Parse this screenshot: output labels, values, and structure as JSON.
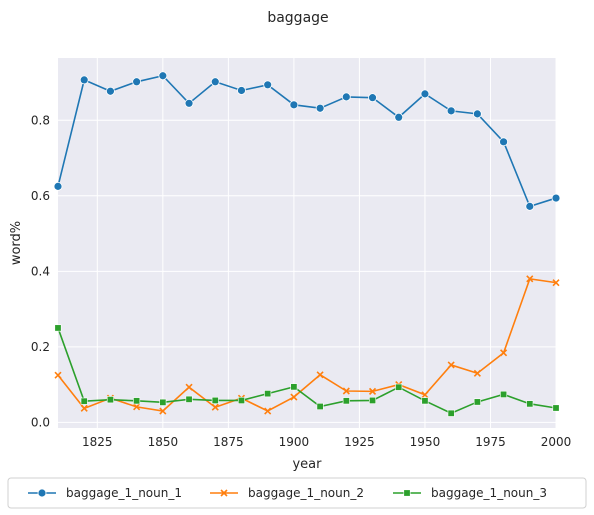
{
  "chart_data": {
    "type": "line",
    "title": "baggage",
    "xlabel": "year",
    "ylabel": "word%",
    "xlim": [
      1810,
      2000
    ],
    "ylim": [
      -0.015,
      0.965
    ],
    "xticks": [
      1825,
      1850,
      1875,
      1900,
      1925,
      1950,
      1975,
      2000
    ],
    "yticks": [
      0.0,
      0.2,
      0.4,
      0.6,
      0.8
    ],
    "grid": true,
    "background": "#eaeaf2",
    "legend_position": "bottom-center",
    "x": [
      1810,
      1820,
      1830,
      1840,
      1850,
      1860,
      1870,
      1880,
      1890,
      1900,
      1910,
      1920,
      1930,
      1940,
      1950,
      1960,
      1970,
      1980,
      1990,
      2000
    ],
    "series": [
      {
        "name": "baggage_1_noun_1",
        "color": "#1f77b4",
        "marker": "circle",
        "values": [
          0.625,
          0.907,
          0.877,
          0.902,
          0.918,
          0.845,
          0.902,
          0.879,
          0.894,
          0.841,
          0.832,
          0.862,
          0.86,
          0.808,
          0.87,
          0.825,
          0.817,
          0.743,
          0.572,
          0.594
        ]
      },
      {
        "name": "baggage_1_noun_2",
        "color": "#ff7f0e",
        "marker": "x",
        "values": [
          0.125,
          0.037,
          0.064,
          0.041,
          0.03,
          0.093,
          0.04,
          0.064,
          0.03,
          0.067,
          0.126,
          0.083,
          0.082,
          0.1,
          0.073,
          0.152,
          0.13,
          0.184,
          0.38,
          0.37
        ]
      },
      {
        "name": "baggage_1_noun_3",
        "color": "#2ca02c",
        "marker": "square",
        "values": [
          0.25,
          0.056,
          0.06,
          0.057,
          0.053,
          0.061,
          0.058,
          0.058,
          0.076,
          0.094,
          0.042,
          0.057,
          0.058,
          0.093,
          0.057,
          0.024,
          0.054,
          0.074,
          0.049,
          0.038
        ]
      }
    ]
  }
}
